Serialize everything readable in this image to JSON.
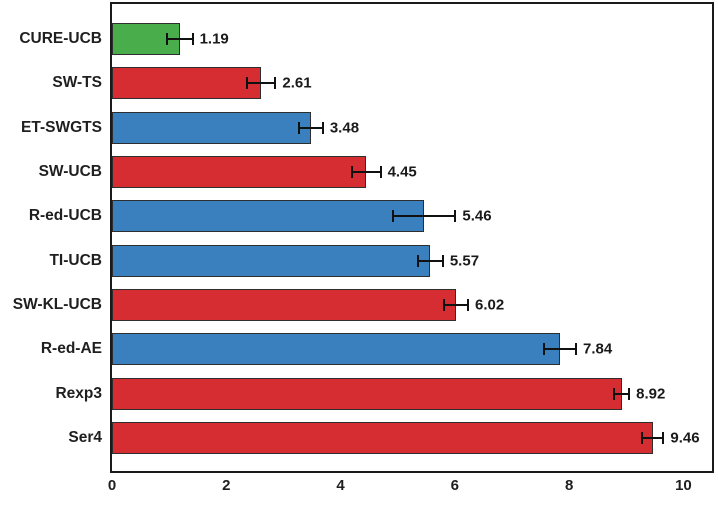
{
  "figure": {
    "background": "#ffffff",
    "plot_border_color": "#1a1a1a",
    "bar_edge_color": "#2e2e2e",
    "error_bar_color": "#111111",
    "text_color": "#1f1f1f"
  },
  "palette": {
    "green": "#4aad4c",
    "red": "#d62d33",
    "blue": "#3a7fbe"
  },
  "chart_data": {
    "type": "bar",
    "orientation": "horizontal",
    "title": "",
    "xlabel": "",
    "ylabel": "",
    "grid": false,
    "legend_position": "none",
    "xlim": [
      0,
      10.5
    ],
    "x_ticks": [
      "0",
      "2",
      "4",
      "6",
      "8",
      "10"
    ],
    "x_tick_values": [
      0,
      2,
      4,
      6,
      8,
      10
    ],
    "categories": [
      "CURE-UCB",
      "SW-TS",
      "ET-SWGTS",
      "SW-UCB",
      "R-ed-UCB",
      "TI-UCB",
      "SW-KL-UCB",
      "R-ed-AE",
      "Rexp3",
      "Ser4"
    ],
    "values": [
      1.19,
      2.61,
      3.48,
      4.45,
      5.46,
      5.57,
      6.02,
      7.84,
      8.92,
      9.46
    ],
    "value_labels": [
      "1.19",
      "2.61",
      "3.48",
      "4.45",
      "5.46",
      "5.57",
      "6.02",
      "7.84",
      "8.92",
      "9.46"
    ],
    "errors": [
      0.22,
      0.25,
      0.21,
      0.25,
      0.55,
      0.22,
      0.21,
      0.28,
      0.13,
      0.19
    ],
    "bar_colors": [
      "#4aad4c",
      "#d62d33",
      "#3a7fbe",
      "#d62d33",
      "#3a7fbe",
      "#3a7fbe",
      "#d62d33",
      "#3a7fbe",
      "#d62d33",
      "#d62d33"
    ]
  }
}
